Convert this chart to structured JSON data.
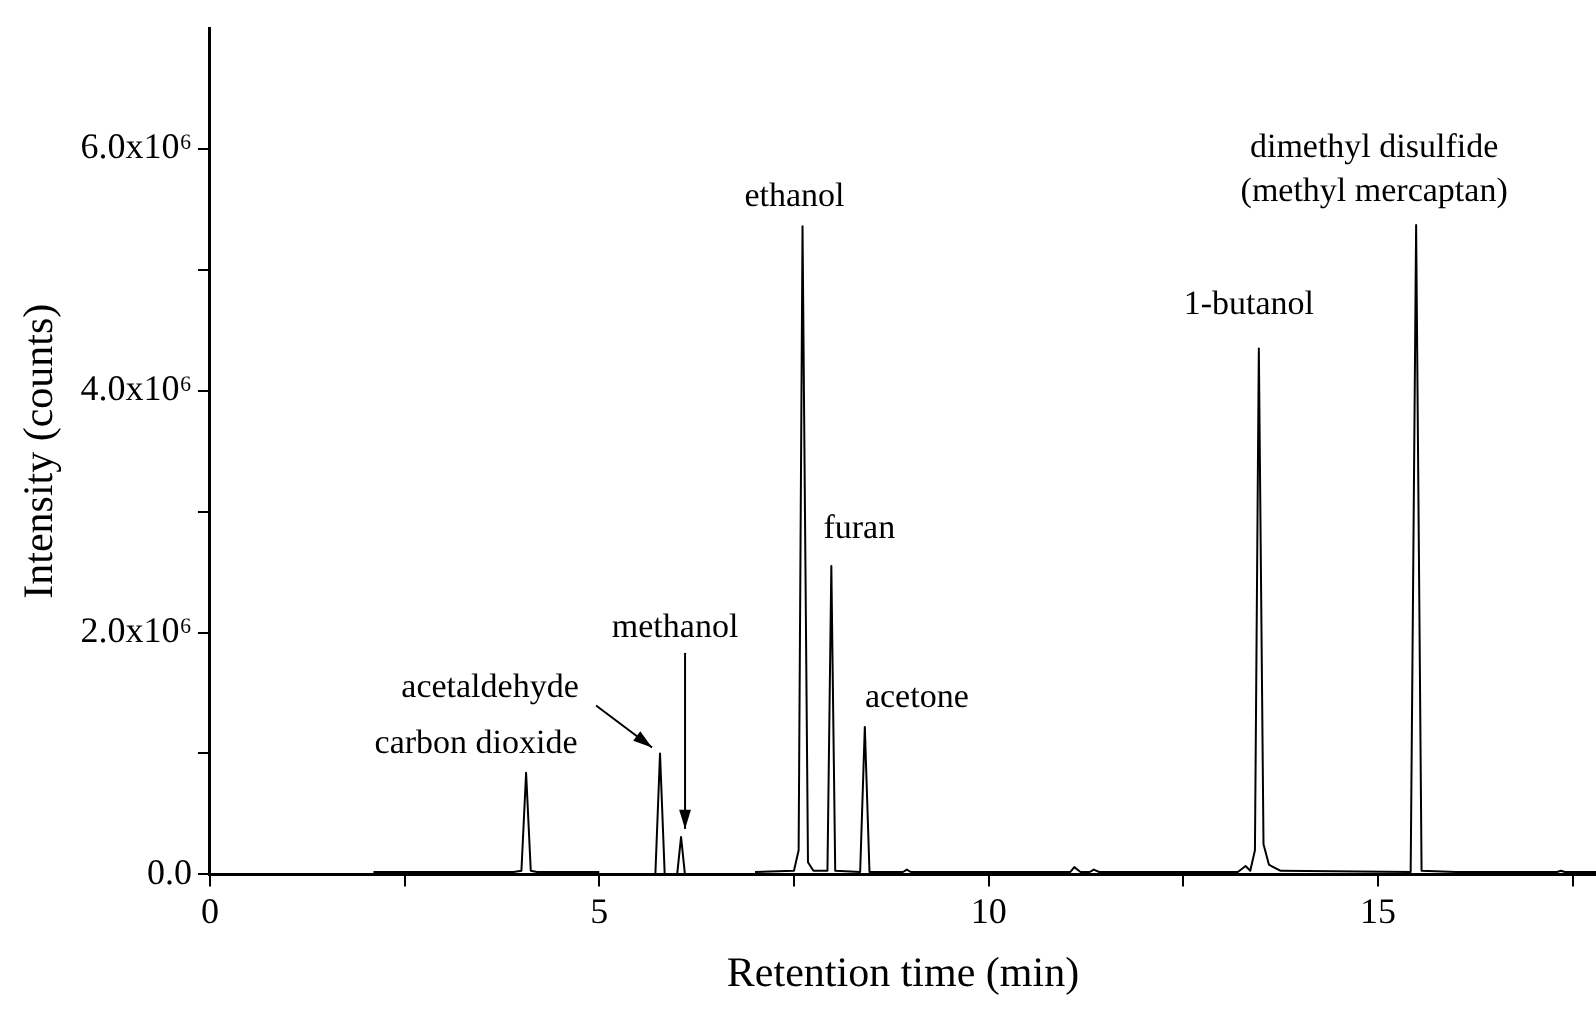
{
  "chart_data": {
    "type": "line",
    "xlabel": "Retention time (min)",
    "ylabel": "Intensity (counts)",
    "xlim": [
      0,
      17.8
    ],
    "ylim": [
      0,
      7000000
    ],
    "xticks": [
      0,
      {
        "value": 2.5,
        "label": null
      },
      5,
      {
        "value": 7.5,
        "label": null
      },
      10,
      {
        "value": 12.5,
        "label": null
      },
      15,
      {
        "value": 17.5,
        "label": null
      }
    ],
    "yticks": [
      {
        "value": 0,
        "label": "0.0"
      },
      {
        "value": 1000000,
        "label": null
      },
      {
        "value": 2000000,
        "label": "2.0x10⁶"
      },
      {
        "value": 3000000,
        "label": null
      },
      {
        "value": 4000000,
        "label": "4.0x10⁶"
      },
      {
        "value": 5000000,
        "label": null
      },
      {
        "value": 6000000,
        "label": "6.0x10⁶"
      }
    ],
    "grid": false,
    "marker": "none",
    "line_style": "solid",
    "series": [
      {
        "color": "#000000",
        "x": [
          2.1,
          3.9,
          4.0,
          4.06,
          4.12,
          4.2,
          5.0,
          5.4,
          5.72,
          5.78,
          5.84,
          5.92,
          6.0,
          6.05,
          6.1,
          6.5,
          7.0,
          7.5,
          7.56,
          7.61,
          7.68,
          7.75,
          7.93,
          7.98,
          8.03,
          8.35,
          8.41,
          8.47,
          8.9,
          8.95,
          9.0,
          11.05,
          11.1,
          11.18,
          11.3,
          11.35,
          11.42,
          13.2,
          13.3,
          13.36,
          13.42,
          13.47,
          13.53,
          13.6,
          13.75,
          15.42,
          15.49,
          15.56,
          16.0,
          17.3,
          17.35,
          17.4,
          17.8
        ],
        "values": [
          20000,
          20000,
          30000,
          840000,
          30000,
          20000,
          20000,
          null,
          0,
          1000000,
          0,
          null,
          0,
          310000,
          0,
          null,
          20000,
          30000,
          200000,
          5360000,
          100000,
          30000,
          30000,
          2550000,
          30000,
          20000,
          1220000,
          20000,
          20000,
          40000,
          20000,
          20000,
          60000,
          20000,
          20000,
          40000,
          20000,
          20000,
          70000,
          30000,
          200000,
          4350000,
          250000,
          80000,
          30000,
          20000,
          5370000,
          30000,
          20000,
          20000,
          30000,
          20000,
          20000
        ]
      }
    ],
    "annotations": [
      {
        "text": "carbon dioxide",
        "x": 4.06,
        "y": 840000
      },
      {
        "text": "acetaldehyde",
        "x": 5.78,
        "y": 1000000
      },
      {
        "text": "methanol",
        "x": 6.05,
        "y": 310000
      },
      {
        "text": "ethanol",
        "x": 7.61,
        "y": 5360000
      },
      {
        "text": "furan",
        "x": 7.98,
        "y": 2550000
      },
      {
        "text": "acetone",
        "x": 8.41,
        "y": 1220000
      },
      {
        "text": "1-butanol",
        "x": 13.47,
        "y": 4350000
      },
      {
        "text": "dimethyl disulfide\n(methyl mercaptan)",
        "x": 15.49,
        "y": 5370000
      }
    ]
  }
}
